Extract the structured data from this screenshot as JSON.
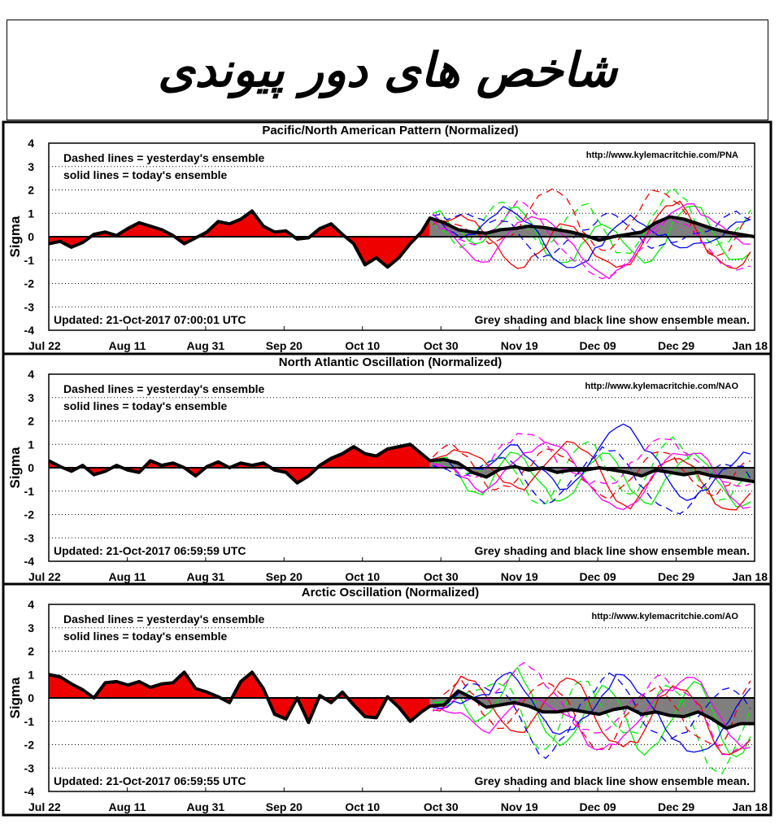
{
  "header": {
    "title": "شاخص های دور پیوندی"
  },
  "chart_data": [
    {
      "type": "line",
      "title": "Pacific/North American Pattern (Normalized)",
      "xlabel": "",
      "ylabel": "Sigma",
      "ylim": [
        -4,
        4
      ],
      "yticks": [
        "4",
        "3",
        "2",
        "1",
        "0",
        "-1",
        "-2",
        "-3",
        "-4"
      ],
      "xticks": [
        "Jul 22",
        "Aug 11",
        "Aug 31",
        "Sep 20",
        "Oct 10",
        "Oct 30",
        "Nov 19",
        "Dec 09",
        "Dec 29",
        "Jan 18"
      ],
      "grid": "dotted horizontal",
      "legend_text": [
        "Dashed lines = yesterday's ensemble",
        "solid lines = today's ensemble"
      ],
      "url": "http://www.kylemacritchie.com/PNA",
      "updated": "Updated: 21-Oct-2017 07:00:01 UTC",
      "note": "Grey shading and black line show ensemble mean.",
      "colors": {
        "observed_fill": "#ee0000",
        "mean_fill": "#7f7f7f",
        "mean_line": "#000000",
        "members": [
          "#00ee00",
          "#ee0000",
          "#0000ee",
          "#ff00ff"
        ]
      },
      "observed": [
        [
          0,
          -0.3
        ],
        [
          4,
          -0.2
        ],
        [
          8,
          -0.45
        ],
        [
          12,
          -0.25
        ],
        [
          16,
          0.1
        ],
        [
          20,
          0.2
        ],
        [
          24,
          0.05
        ],
        [
          28,
          0.35
        ],
        [
          32,
          0.6
        ],
        [
          36,
          0.45
        ],
        [
          40,
          0.3
        ],
        [
          44,
          0.05
        ],
        [
          48,
          -0.3
        ],
        [
          52,
          -0.05
        ],
        [
          56,
          0.2
        ],
        [
          60,
          0.65
        ],
        [
          64,
          0.55
        ],
        [
          68,
          0.75
        ],
        [
          72,
          1.1
        ],
        [
          76,
          0.45
        ],
        [
          80,
          0.2
        ],
        [
          84,
          0.25
        ],
        [
          88,
          -0.1
        ],
        [
          92,
          -0.05
        ],
        [
          96,
          0.35
        ],
        [
          100,
          0.55
        ],
        [
          104,
          0.1
        ],
        [
          108,
          -0.3
        ],
        [
          112,
          -1.2
        ],
        [
          116,
          -0.9
        ],
        [
          120,
          -1.3
        ],
        [
          124,
          -0.9
        ],
        [
          128,
          -0.3
        ],
        [
          132,
          0.2
        ],
        [
          135,
          0.8
        ]
      ],
      "mean": [
        [
          135,
          0.8
        ],
        [
          140,
          0.6
        ],
        [
          145,
          0.3
        ],
        [
          150,
          0.2
        ],
        [
          155,
          0.15
        ],
        [
          160,
          0.3
        ],
        [
          165,
          0.35
        ],
        [
          170,
          0.45
        ],
        [
          175,
          0.4
        ],
        [
          180,
          0.3
        ],
        [
          185,
          0.2
        ],
        [
          190,
          0.05
        ],
        [
          195,
          -0.15
        ],
        [
          200,
          0.0
        ],
        [
          205,
          0.1
        ],
        [
          210,
          0.2
        ],
        [
          215,
          0.6
        ],
        [
          220,
          0.85
        ],
        [
          225,
          0.75
        ],
        [
          230,
          0.55
        ],
        [
          235,
          0.35
        ],
        [
          240,
          0.2
        ],
        [
          245,
          0.1
        ],
        [
          250,
          0.0
        ]
      ],
      "spread": 1.0
    },
    {
      "type": "line",
      "title": "North Atlantic Oscillation (Normalized)",
      "xlabel": "",
      "ylabel": "Sigma",
      "ylim": [
        -4,
        4
      ],
      "yticks": [
        "4",
        "3",
        "2",
        "1",
        "0",
        "-1",
        "-2",
        "-3",
        "-4"
      ],
      "xticks": [
        "Jul 22",
        "Aug 11",
        "Aug 31",
        "Sep 20",
        "Oct 10",
        "Oct 30",
        "Nov 19",
        "Dec 09",
        "Dec 29",
        "Jan 18"
      ],
      "grid": "dotted horizontal",
      "legend_text": [
        "Dashed lines = yesterday's ensemble",
        "solid lines = today's ensemble"
      ],
      "url": "http://www.kylemacritchie.com/NAO",
      "updated": "Updated: 21-Oct-2017 06:59:59 UTC",
      "note": "Grey shading and black line show ensemble mean.",
      "colors": {
        "observed_fill": "#ee0000",
        "mean_fill": "#7f7f7f",
        "mean_line": "#000000",
        "members": [
          "#00ee00",
          "#ee0000",
          "#0000ee",
          "#ff00ff"
        ]
      },
      "observed": [
        [
          0,
          0.3
        ],
        [
          4,
          0.05
        ],
        [
          8,
          -0.15
        ],
        [
          12,
          0.1
        ],
        [
          16,
          -0.3
        ],
        [
          20,
          -0.15
        ],
        [
          24,
          0.1
        ],
        [
          28,
          -0.1
        ],
        [
          32,
          -0.2
        ],
        [
          36,
          0.3
        ],
        [
          40,
          0.1
        ],
        [
          44,
          0.2
        ],
        [
          48,
          0.0
        ],
        [
          52,
          -0.35
        ],
        [
          56,
          0.05
        ],
        [
          60,
          0.25
        ],
        [
          64,
          0.0
        ],
        [
          68,
          0.2
        ],
        [
          72,
          0.1
        ],
        [
          76,
          0.2
        ],
        [
          80,
          -0.1
        ],
        [
          84,
          -0.2
        ],
        [
          88,
          -0.65
        ],
        [
          92,
          -0.35
        ],
        [
          96,
          0.1
        ],
        [
          100,
          0.4
        ],
        [
          104,
          0.6
        ],
        [
          108,
          0.9
        ],
        [
          112,
          0.6
        ],
        [
          116,
          0.5
        ],
        [
          120,
          0.8
        ],
        [
          124,
          0.9
        ],
        [
          128,
          1.0
        ],
        [
          132,
          0.6
        ],
        [
          135,
          0.3
        ]
      ],
      "mean": [
        [
          135,
          0.3
        ],
        [
          140,
          0.35
        ],
        [
          145,
          0.2
        ],
        [
          150,
          -0.2
        ],
        [
          155,
          -0.4
        ],
        [
          160,
          -0.05
        ],
        [
          165,
          0.05
        ],
        [
          170,
          -0.1
        ],
        [
          175,
          0.0
        ],
        [
          180,
          -0.2
        ],
        [
          185,
          -0.1
        ],
        [
          190,
          -0.1
        ],
        [
          195,
          0.0
        ],
        [
          200,
          -0.1
        ],
        [
          205,
          -0.2
        ],
        [
          210,
          -0.35
        ],
        [
          215,
          -0.1
        ],
        [
          220,
          -0.2
        ],
        [
          225,
          -0.3
        ],
        [
          230,
          -0.2
        ],
        [
          235,
          -0.35
        ],
        [
          240,
          -0.4
        ],
        [
          245,
          -0.5
        ],
        [
          250,
          -0.6
        ]
      ],
      "spread": 1.1
    },
    {
      "type": "line",
      "title": "Arctic Oscillation (Normalized)",
      "xlabel": "",
      "ylabel": "Sigma",
      "ylim": [
        -4,
        4
      ],
      "yticks": [
        "4",
        "3",
        "2",
        "1",
        "0",
        "-1",
        "-2",
        "-3",
        "-4"
      ],
      "xticks": [
        "Jul 22",
        "Aug 11",
        "Aug 31",
        "Sep 20",
        "Oct 10",
        "Oct 30",
        "Nov 19",
        "Dec 09",
        "Dec 29",
        "Jan 18"
      ],
      "grid": "dotted horizontal",
      "legend_text": [
        "Dashed lines = yesterday's ensemble",
        "solid lines = today's ensemble"
      ],
      "url": "http://www.kylemacritchie.com/AO",
      "updated": "Updated: 21-Oct-2017 06:59:55 UTC",
      "note": "Grey shading and black line show ensemble mean.",
      "colors": {
        "observed_fill": "#ee0000",
        "mean_fill": "#7f7f7f",
        "mean_line": "#000000",
        "members": [
          "#00ee00",
          "#ee0000",
          "#0000ee",
          "#ff00ff"
        ]
      },
      "observed": [
        [
          0,
          1.0
        ],
        [
          4,
          0.9
        ],
        [
          8,
          0.6
        ],
        [
          12,
          0.35
        ],
        [
          16,
          0.0
        ],
        [
          20,
          0.65
        ],
        [
          24,
          0.7
        ],
        [
          28,
          0.55
        ],
        [
          32,
          0.7
        ],
        [
          36,
          0.45
        ],
        [
          40,
          0.6
        ],
        [
          44,
          0.65
        ],
        [
          48,
          1.1
        ],
        [
          52,
          0.4
        ],
        [
          56,
          0.25
        ],
        [
          60,
          0.05
        ],
        [
          64,
          -0.2
        ],
        [
          68,
          0.7
        ],
        [
          72,
          1.1
        ],
        [
          76,
          0.4
        ],
        [
          80,
          -0.7
        ],
        [
          84,
          -0.9
        ],
        [
          88,
          0.0
        ],
        [
          92,
          -1.05
        ],
        [
          96,
          0.1
        ],
        [
          100,
          -0.2
        ],
        [
          104,
          0.25
        ],
        [
          108,
          -0.3
        ],
        [
          112,
          -0.8
        ],
        [
          116,
          -0.85
        ],
        [
          120,
          0.05
        ],
        [
          124,
          -0.4
        ],
        [
          128,
          -1.0
        ],
        [
          132,
          -0.6
        ],
        [
          135,
          -0.35
        ]
      ],
      "mean": [
        [
          135,
          -0.35
        ],
        [
          140,
          -0.3
        ],
        [
          145,
          0.3
        ],
        [
          150,
          0.0
        ],
        [
          155,
          -0.4
        ],
        [
          160,
          -0.3
        ],
        [
          165,
          -0.2
        ],
        [
          170,
          -0.35
        ],
        [
          175,
          -0.6
        ],
        [
          180,
          -0.6
        ],
        [
          185,
          -0.5
        ],
        [
          190,
          -0.6
        ],
        [
          195,
          -0.7
        ],
        [
          200,
          -0.5
        ],
        [
          205,
          -0.4
        ],
        [
          210,
          -0.7
        ],
        [
          215,
          -0.6
        ],
        [
          220,
          -0.75
        ],
        [
          225,
          -0.8
        ],
        [
          230,
          -0.6
        ],
        [
          235,
          -0.9
        ],
        [
          240,
          -1.3
        ],
        [
          245,
          -1.1
        ],
        [
          250,
          -1.1
        ]
      ],
      "spread": 1.4
    }
  ]
}
